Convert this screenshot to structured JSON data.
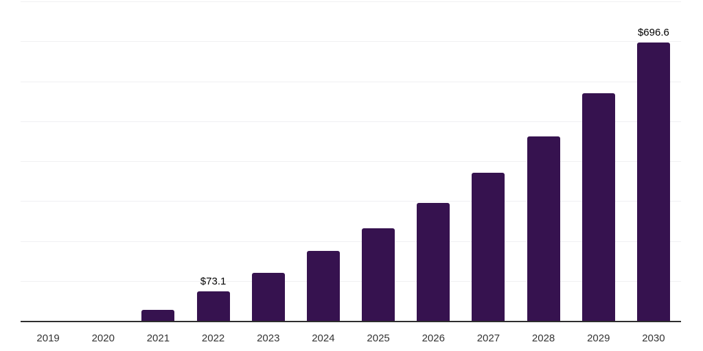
{
  "chart_data": {
    "type": "bar",
    "title": "",
    "xlabel": "",
    "ylabel": "",
    "categories": [
      "2019",
      "2020",
      "2021",
      "2022",
      "2023",
      "2024",
      "2025",
      "2026",
      "2027",
      "2028",
      "2029",
      "2030"
    ],
    "values": [
      0,
      0,
      28,
      73.1,
      121,
      175,
      231,
      296,
      371,
      462,
      570,
      696.6
    ],
    "data_labels": [
      "",
      "",
      "",
      "$73.1",
      "",
      "",
      "",
      "",
      "",
      "",
      "",
      "$696.6"
    ],
    "ylim": [
      0,
      800
    ],
    "gridline_step": 100,
    "grid": "on",
    "legend": "none",
    "y_axis_labels_visible": false,
    "colors": {
      "bar": "#36124f",
      "axis_line": "#2d2d2d",
      "gridline": "#f0f0f2",
      "tick_label": "#333333",
      "data_label": "#000000",
      "background": "#ffffff"
    }
  }
}
